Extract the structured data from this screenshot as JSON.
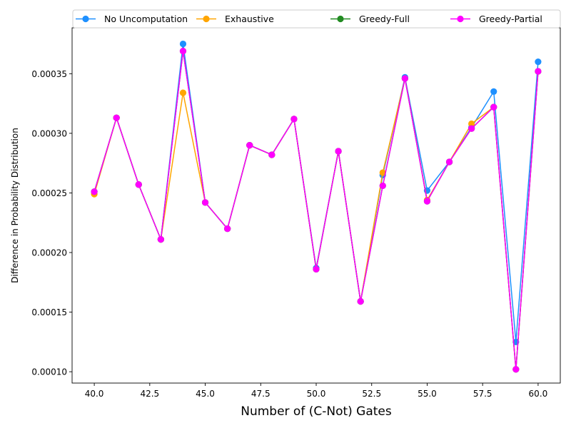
{
  "chart_data": {
    "type": "line",
    "xlabel": "Number of (C-Not) Gates",
    "ylabel": "Difference in Probability Distribution",
    "xlim": [
      39,
      61
    ],
    "ylim": [
      9.05e-05,
      0.0003885
    ],
    "xticks": [
      40.0,
      42.5,
      45.0,
      47.5,
      50.0,
      52.5,
      55.0,
      57.5,
      60.0
    ],
    "xtick_labels": [
      "40.0",
      "42.5",
      "45.0",
      "47.5",
      "50.0",
      "52.5",
      "55.0",
      "57.5",
      "60.0"
    ],
    "yticks": [
      0.0001,
      0.00015,
      0.0002,
      0.00025,
      0.0003,
      0.00035
    ],
    "ytick_labels": [
      "0.00010",
      "0.00015",
      "0.00020",
      "0.00025",
      "0.00030",
      "0.00035"
    ],
    "grid": false,
    "legend_position": "top",
    "x": [
      40,
      41,
      42,
      43,
      44,
      45,
      46,
      47,
      48,
      49,
      50,
      51,
      52,
      53,
      54,
      55,
      56,
      57,
      58,
      59,
      60
    ],
    "series": [
      {
        "name": "No Uncomputation",
        "color": "#1e90ff",
        "values": [
          0.000251,
          0.000313,
          0.000257,
          0.000211,
          0.000375,
          0.000242,
          0.00022,
          0.00029,
          0.000282,
          0.000312,
          0.000187,
          0.000285,
          0.000159,
          0.000265,
          0.000347,
          0.000252,
          0.000276,
          0.000305,
          0.000335,
          0.000125,
          0.00036
        ]
      },
      {
        "name": "Exhaustive",
        "color": "#ffa500",
        "values": [
          0.000249,
          0.000313,
          0.000257,
          0.000211,
          0.000334,
          0.000242,
          0.00022,
          0.00029,
          0.000282,
          0.000312,
          0.000186,
          0.000285,
          0.000159,
          0.000267,
          0.000346,
          0.000244,
          0.000276,
          0.000308,
          0.000322,
          0.000102,
          0.000352
        ]
      },
      {
        "name": "Greedy-Full",
        "color": "#228b22",
        "values": [
          0.000251,
          0.000313,
          0.000257,
          0.000211,
          0.000369,
          0.000242,
          0.00022,
          0.00029,
          0.000282,
          0.000312,
          0.000186,
          0.000285,
          0.000159,
          0.000256,
          0.000346,
          0.000243,
          0.000276,
          0.000304,
          0.000322,
          0.000102,
          0.000352
        ]
      },
      {
        "name": "Greedy-Partial",
        "color": "#ff00ff",
        "values": [
          0.000251,
          0.000313,
          0.000257,
          0.000211,
          0.000369,
          0.000242,
          0.00022,
          0.00029,
          0.000282,
          0.000312,
          0.000186,
          0.000285,
          0.000159,
          0.000256,
          0.000346,
          0.000243,
          0.000276,
          0.000304,
          0.000322,
          0.000102,
          0.000352
        ]
      }
    ]
  }
}
